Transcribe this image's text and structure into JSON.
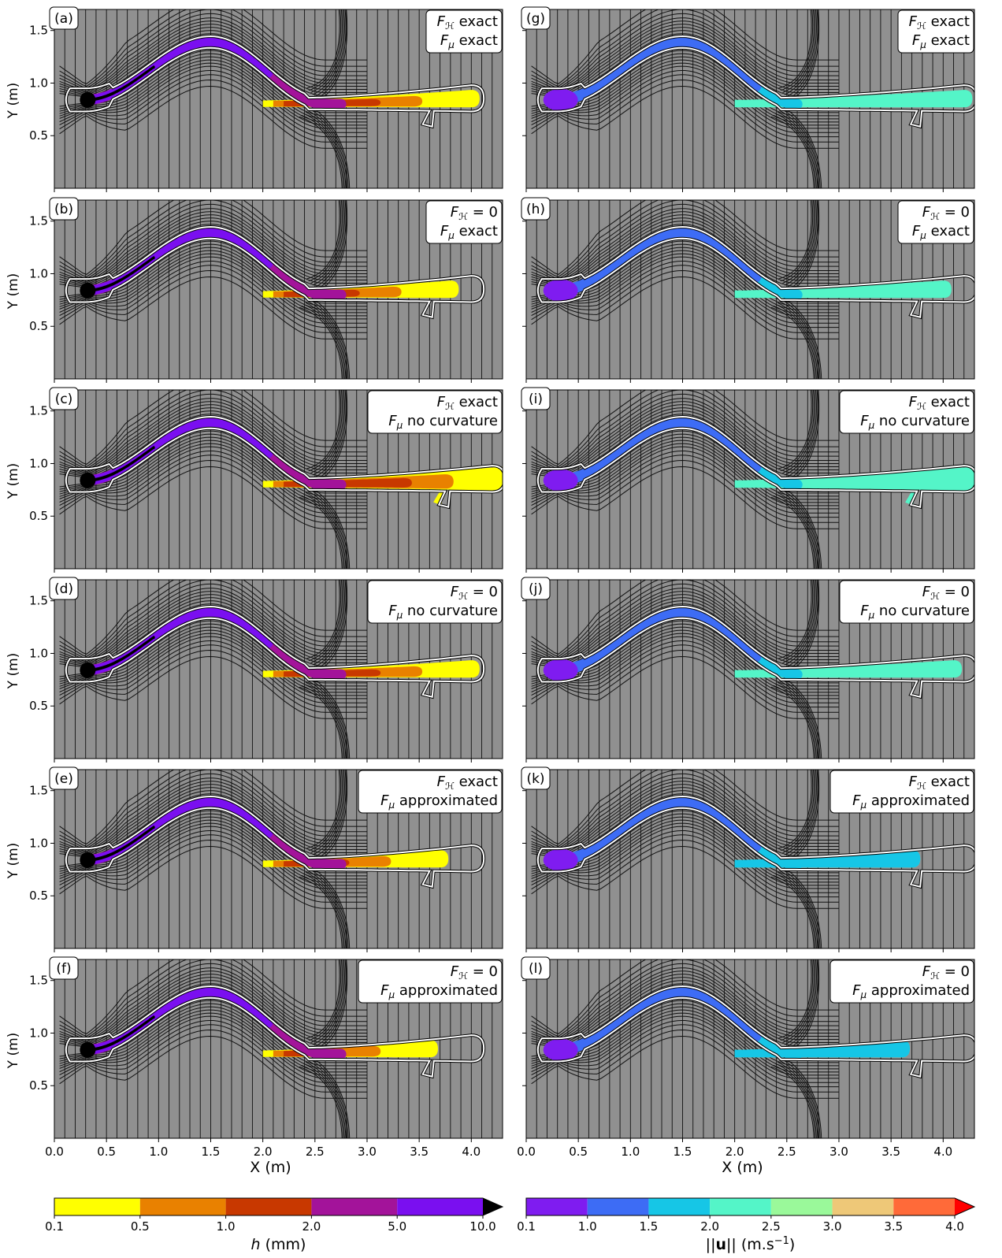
{
  "chart_data": {
    "type": "heatmap",
    "x_axis": {
      "label": "X (m)",
      "range": [
        0.0,
        4.3
      ],
      "ticks": [
        "0.0",
        "0.5",
        "1.0",
        "1.5",
        "2.0",
        "2.5",
        "3.0",
        "3.5",
        "4.0"
      ]
    },
    "y_axis": {
      "label": "Y (m)",
      "range": [
        0.0,
        1.7
      ],
      "ticks": [
        "0.5",
        "1.0",
        "1.5"
      ]
    },
    "panels": [
      {
        "letter": "(a)",
        "column": "h",
        "line1": "exact",
        "line2": "exact",
        "fh_zero": false,
        "extent_x": 4.0,
        "outline_x": 4.0
      },
      {
        "letter": "(b)",
        "column": "h",
        "line1": "= 0",
        "line2": "exact",
        "fh_zero": true,
        "extent_x": 3.8,
        "outline_x": 4.0
      },
      {
        "letter": "(c)",
        "column": "h",
        "line1": "exact",
        "line2": "no curvature",
        "fh_zero": false,
        "extent_x": 4.3,
        "outline_x": 4.2
      },
      {
        "letter": "(d)",
        "column": "h",
        "line1": "= 0",
        "line2": "no curvature",
        "fh_zero": true,
        "extent_x": 4.0,
        "outline_x": 4.0
      },
      {
        "letter": "(e)",
        "column": "h",
        "line1": "exact",
        "line2": "approximated",
        "fh_zero": false,
        "extent_x": 3.7,
        "outline_x": 4.0
      },
      {
        "letter": "(f)",
        "column": "h",
        "line1": "= 0",
        "line2": "approximated",
        "fh_zero": true,
        "extent_x": 3.6,
        "outline_x": 4.0
      },
      {
        "letter": "(g)",
        "column": "u",
        "line1": "exact",
        "line2": "exact",
        "fh_zero": false,
        "extent_x": 4.2,
        "outline_x": 4.2
      },
      {
        "letter": "(h)",
        "column": "u",
        "line1": "= 0",
        "line2": "exact",
        "fh_zero": true,
        "extent_x": 4.0,
        "outline_x": 4.2
      },
      {
        "letter": "(i)",
        "column": "u",
        "line1": "exact",
        "line2": "no curvature",
        "fh_zero": false,
        "extent_x": 4.3,
        "outline_x": 4.2
      },
      {
        "letter": "(j)",
        "column": "u",
        "line1": "= 0",
        "line2": "no curvature",
        "fh_zero": true,
        "extent_x": 4.1,
        "outline_x": 4.2
      },
      {
        "letter": "(k)",
        "column": "u",
        "line1": "exact",
        "line2": "approximated",
        "fh_zero": false,
        "extent_x": 3.7,
        "outline_x": 4.2
      },
      {
        "letter": "(l)",
        "column": "u",
        "line1": "= 0",
        "line2": "approximated",
        "fh_zero": true,
        "extent_x": 3.6,
        "outline_x": 4.2
      }
    ],
    "colorbars": [
      {
        "name": "h",
        "label": "h (mm)",
        "ticks": [
          "0.1",
          "0.5",
          "1.0",
          "2.0",
          "5.0",
          "10.0"
        ],
        "colors": [
          "#ffff00",
          "#e98100",
          "#c83800",
          "#a3139a",
          "#7a0ff0"
        ],
        "extend_color": "#000000"
      },
      {
        "name": "u",
        "label": "||u|| (m.s-1)",
        "ticks": [
          "0.1",
          "1.0",
          "1.5",
          "2.0",
          "2.5",
          "3.0",
          "3.5",
          "4.0"
        ],
        "colors": [
          "#7f1cf0",
          "#3d6cf5",
          "#16c6e6",
          "#54f5c8",
          "#9af99a",
          "#eec878",
          "#ff6a39"
        ],
        "extend_color": "#ff0000"
      }
    ],
    "background_color": "#909090",
    "flow_outline_color": "#ffffff"
  }
}
